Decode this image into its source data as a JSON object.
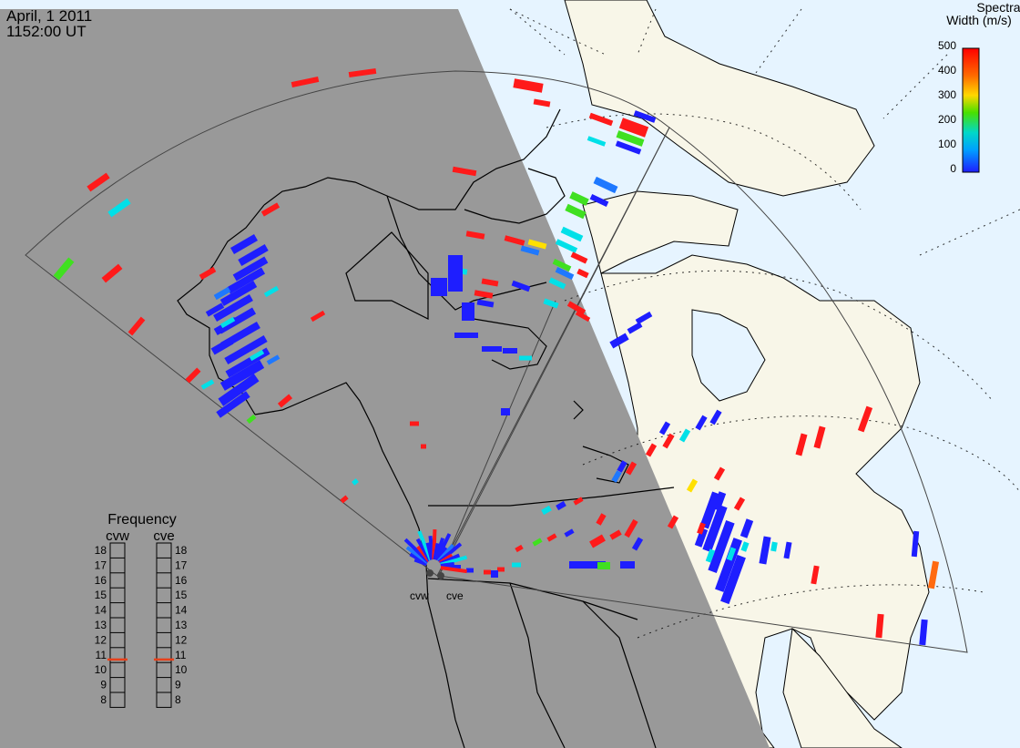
{
  "header": {
    "date": "April, 1 2011",
    "time": "1152:00 UT"
  },
  "colorbar": {
    "title_line1": "Spectral",
    "title_line2": "Width (m/s)",
    "ticks": [
      "500",
      "400",
      "300",
      "200",
      "100",
      "0"
    ],
    "range": [
      0,
      500
    ],
    "colors": [
      "#ff0000",
      "#ff6a00",
      "#ffd800",
      "#48e000",
      "#00d8c8",
      "#00a0ff",
      "#1e1eff"
    ]
  },
  "radars": {
    "west": "cvw",
    "east": "cve"
  },
  "frequency_panel": {
    "title": "Frequency",
    "col_west": "cvw",
    "col_east": "cve",
    "levels": [
      "18",
      "17",
      "16",
      "15",
      "14",
      "13",
      "12",
      "11",
      "10",
      "9",
      "8"
    ],
    "cvw_freq_mhz": 10.7,
    "cve_freq_mhz": 10.7,
    "marker_color": "#e8401a"
  },
  "colors": {
    "night_shade": "#999999",
    "ocean": "#e6f4ff",
    "land": "#f8f6e8",
    "coast": "#000000"
  }
}
